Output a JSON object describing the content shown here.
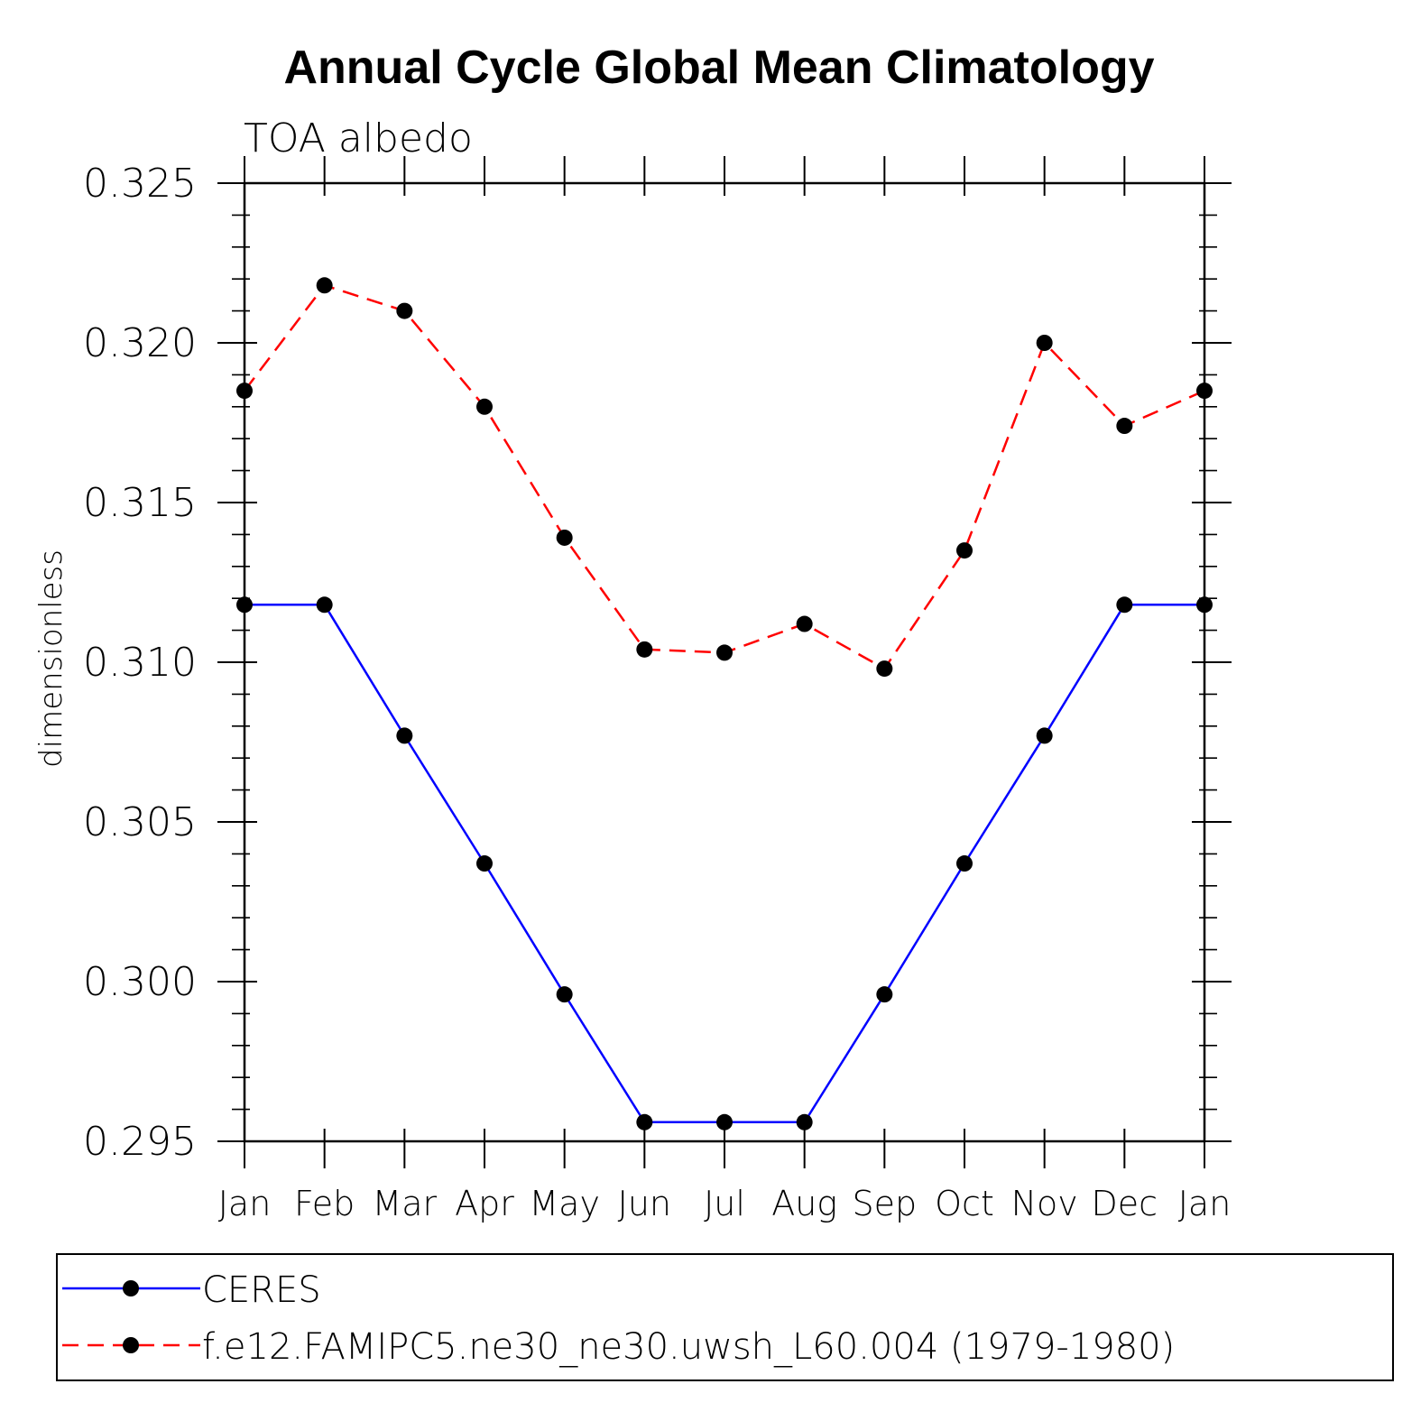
{
  "chart_data": {
    "type": "line",
    "title": "Annual Cycle Global Mean Climatology",
    "subtitle": "TOA albedo",
    "xlabel": "",
    "ylabel": "dimensionless",
    "categories": [
      "Jan",
      "Feb",
      "Mar",
      "Apr",
      "May",
      "Jun",
      "Jul",
      "Aug",
      "Sep",
      "Oct",
      "Nov",
      "Dec",
      "Jan"
    ],
    "ylim": [
      0.295,
      0.325
    ],
    "yticks": [
      "0.295",
      "0.300",
      "0.305",
      "0.310",
      "0.315",
      "0.320",
      "0.325"
    ],
    "grid": false,
    "legend_position": "bottom",
    "series": [
      {
        "name": "CERES",
        "color": "#0000ff",
        "line_style": "solid",
        "marker": "filled-circle",
        "values": [
          0.3118,
          0.3118,
          0.3077,
          0.3037,
          0.2996,
          0.2956,
          0.2956,
          0.2956,
          0.2996,
          0.3037,
          0.3077,
          0.3118,
          0.3118
        ]
      },
      {
        "name": "f.e12.FAMIPC5.ne30_ne30.uwsh_L60.004 (1979-1980)",
        "color": "#ff0000",
        "line_style": "dashed",
        "marker": "filled-circle",
        "values": [
          0.3185,
          0.3218,
          0.321,
          0.318,
          0.3139,
          0.3104,
          0.3103,
          0.3112,
          0.3098,
          0.3135,
          0.32,
          0.3174,
          0.3185
        ]
      }
    ]
  }
}
